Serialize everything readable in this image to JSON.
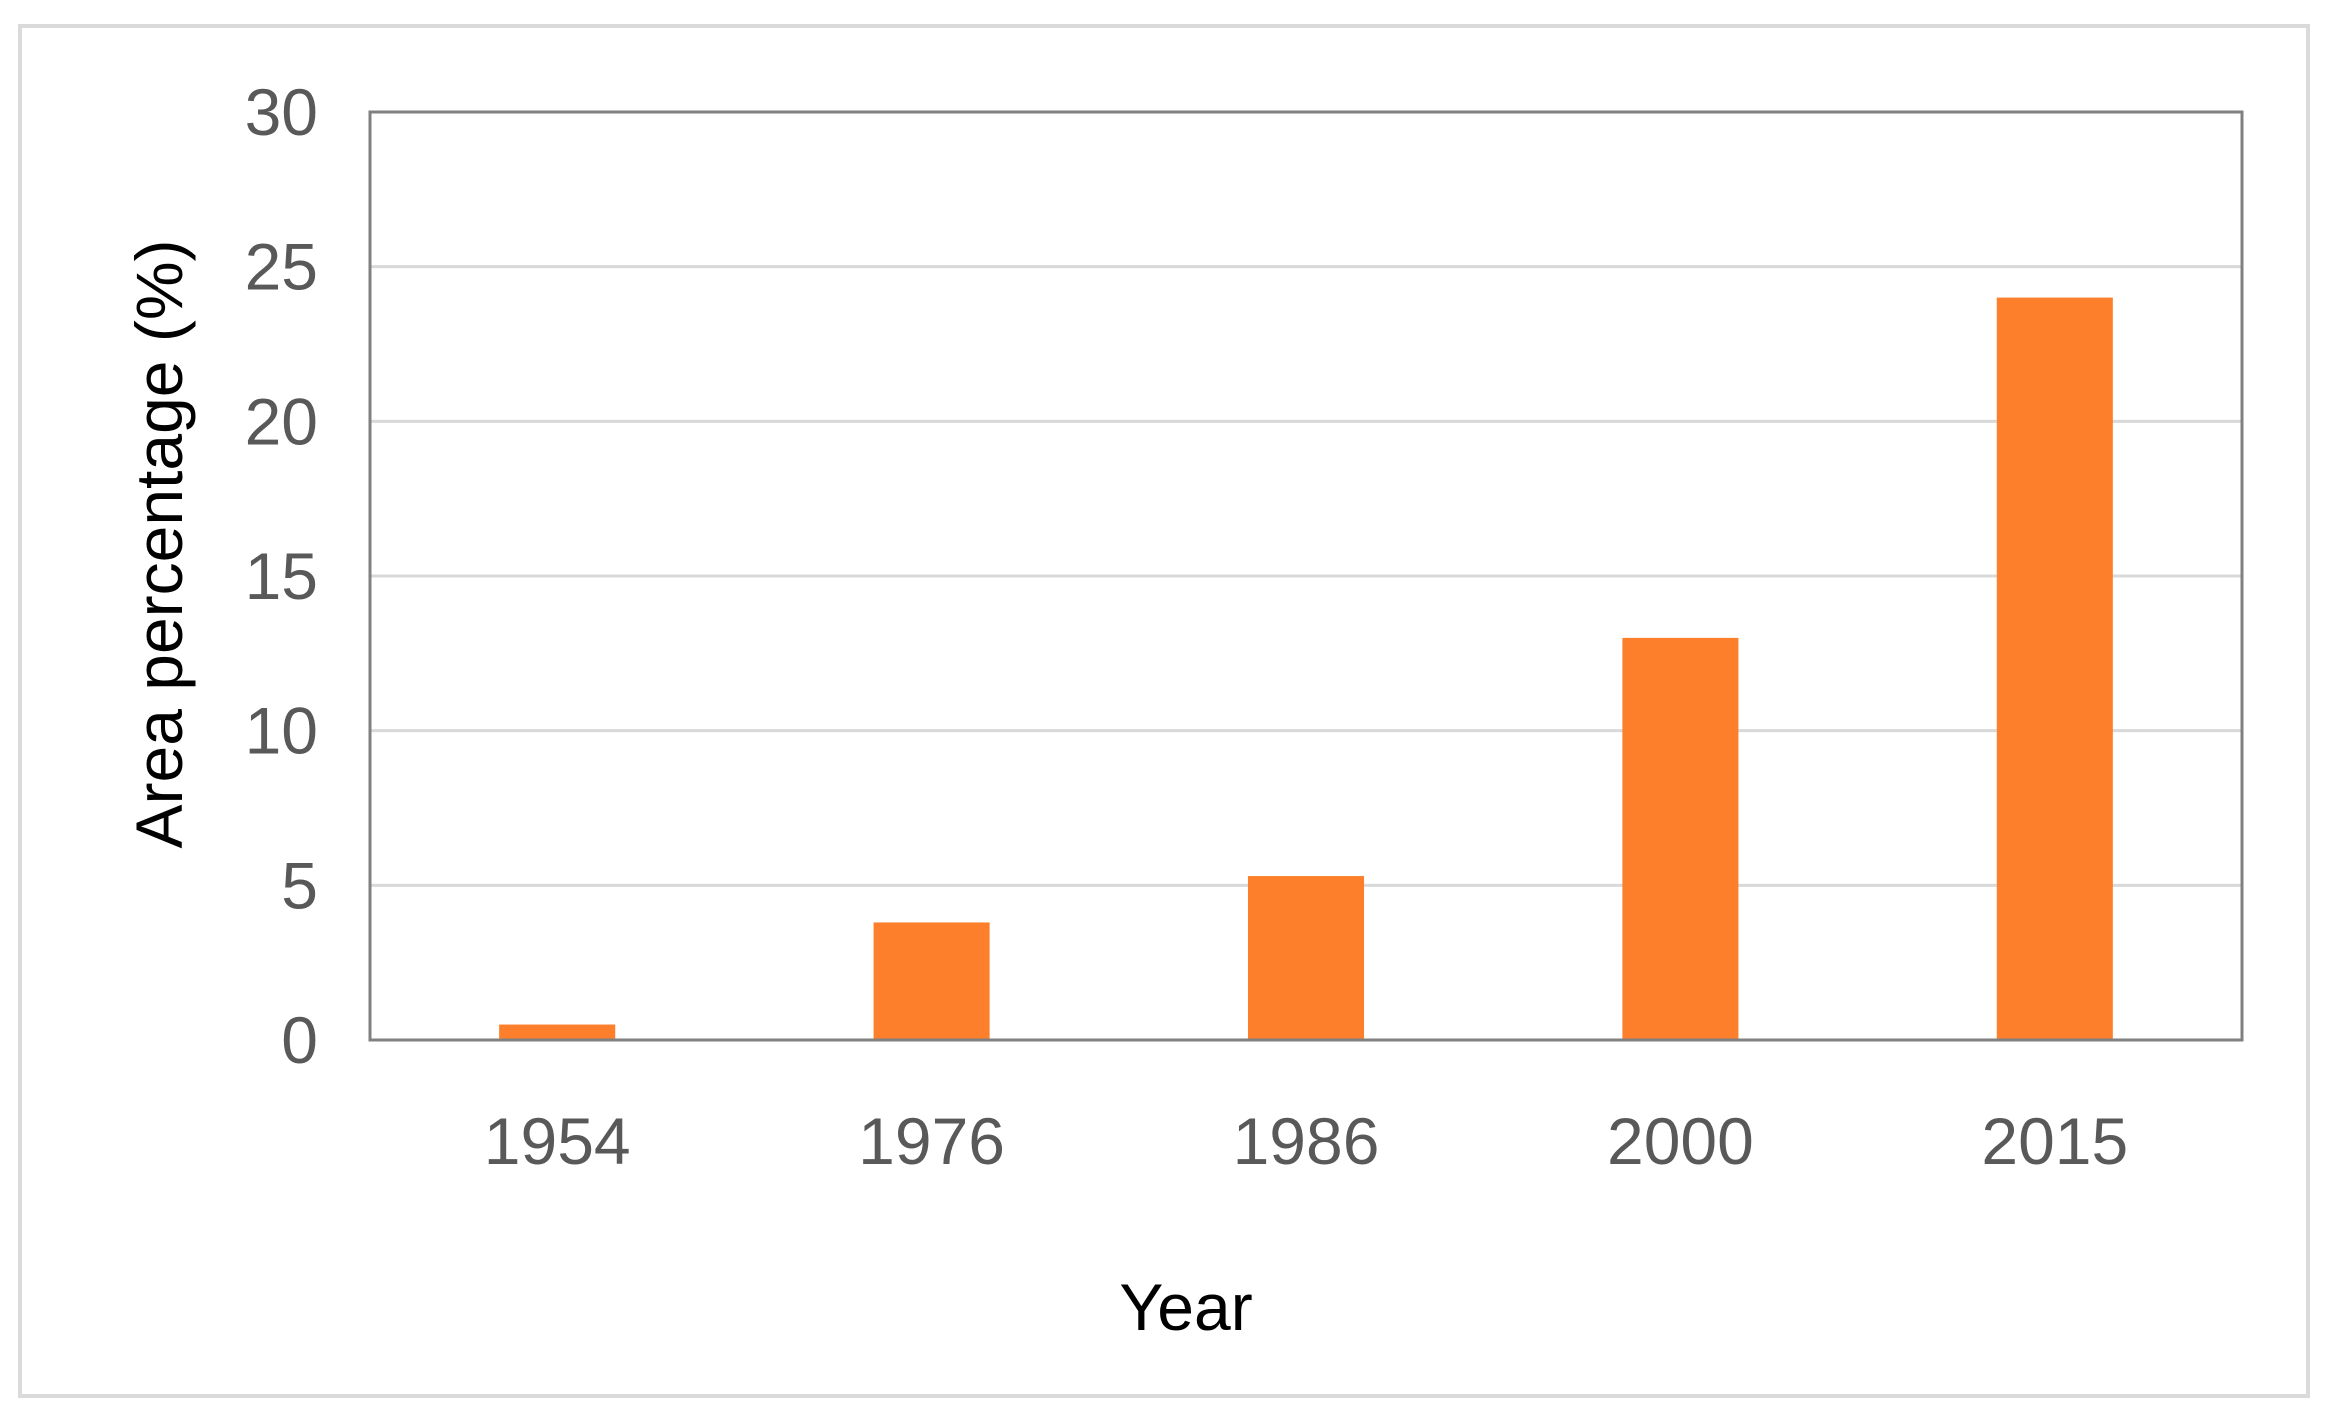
{
  "chart_data": {
    "type": "bar",
    "categories": [
      "1954",
      "1976",
      "1986",
      "2000",
      "2015"
    ],
    "series": [
      {
        "values": [
          0.5,
          3.8,
          5.3,
          13,
          24
        ]
      }
    ],
    "title": "",
    "xlabel": "Year",
    "ylabel": "Area percentage (%)",
    "ylim": [
      0,
      30
    ],
    "yticks": [
      "0",
      "5",
      "10",
      "15",
      "20",
      "25",
      "30"
    ],
    "grid": true,
    "legend": "none",
    "bar_color": "#FD7F2B",
    "grid_color": "#D9D9D9",
    "axis_color": "#808080"
  }
}
